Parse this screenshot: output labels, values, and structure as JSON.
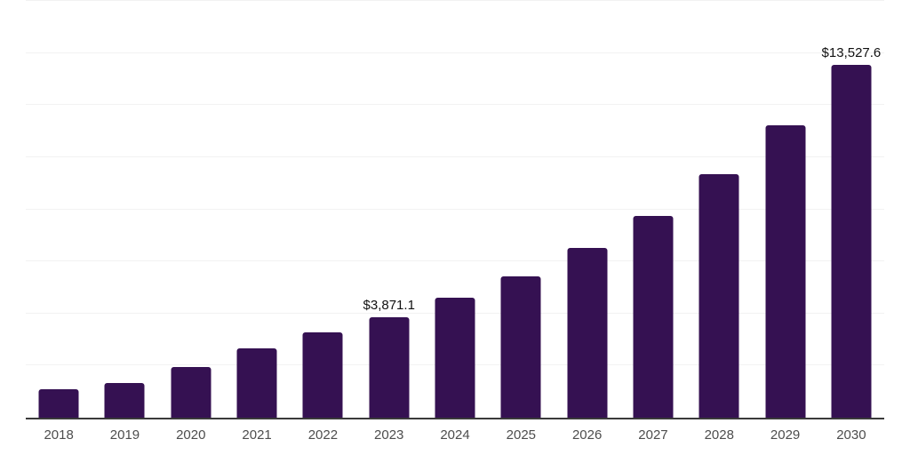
{
  "chart_data": {
    "type": "bar",
    "title": "",
    "xlabel": "",
    "ylabel": "",
    "categories": [
      "2018",
      "2019",
      "2020",
      "2021",
      "2022",
      "2023",
      "2024",
      "2025",
      "2026",
      "2027",
      "2028",
      "2029",
      "2030"
    ],
    "values": [
      1100,
      1330,
      1950,
      2670,
      3270,
      3871.1,
      4610,
      5430,
      6510,
      7760,
      9340,
      11220,
      13527.6
    ],
    "point_labels": {
      "2023": "$3,871.1",
      "2030": "$13,527.6"
    },
    "ylim": [
      0,
      16000
    ],
    "gridline_step": 2000,
    "grid": true,
    "legend": false,
    "colors": {
      "bar": "#351152",
      "axis_line": "#3a3a3a",
      "gridline": "#f2f2f2",
      "tick_label": "#4d4d4d",
      "data_label": "#111111",
      "background": "#ffffff"
    }
  }
}
